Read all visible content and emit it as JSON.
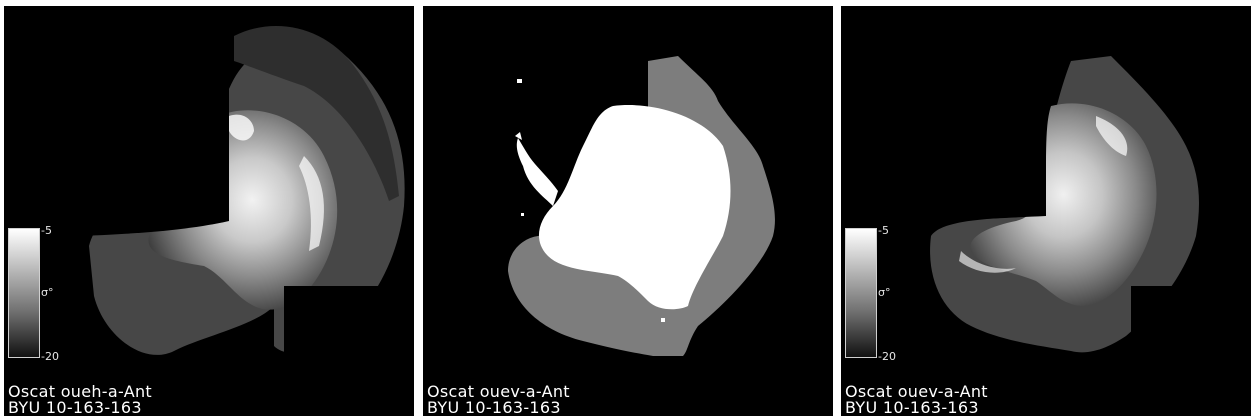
{
  "panels": [
    {
      "caption_line1": "Oscat oueh-a-Ant",
      "caption_line2": "BYU 10-163-163",
      "colorbar": {
        "max_label": "-5",
        "min_label": "-20",
        "unit_label": "σ°"
      }
    },
    {
      "caption_line1": "Oscat ouev-a-Ant",
      "caption_line2": "BYU 10-163-163"
    },
    {
      "caption_line1": "Oscat ouev-a-Ant",
      "caption_line2": "BYU 10-163-163",
      "colorbar": {
        "max_label": "-5",
        "min_label": "-20",
        "unit_label": "σ°"
      }
    }
  ]
}
